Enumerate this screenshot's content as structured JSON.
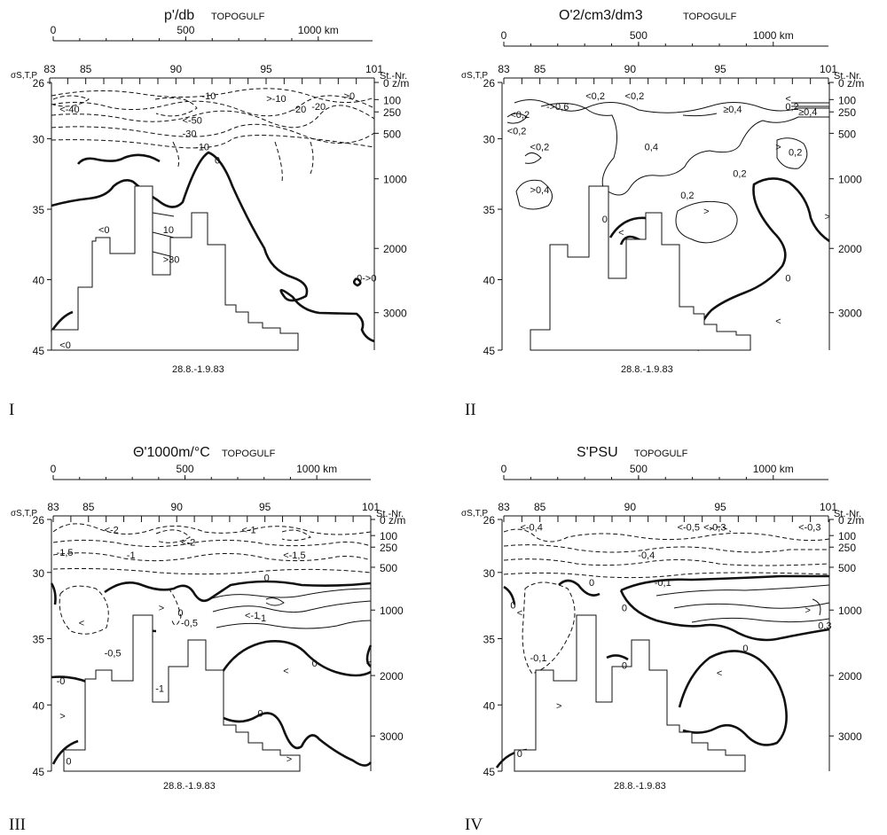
{
  "figure": {
    "panel_numerals": [
      "I",
      "II",
      "III",
      "IV"
    ]
  },
  "chart_data": [
    {
      "type": "contour",
      "title": "p'/db",
      "cruise": "TOPOGULF",
      "date": "28.8.-1.9.83",
      "y_label": "σS,T,P",
      "y_ticks": [
        "26",
        "30",
        "35",
        "40",
        "45"
      ],
      "station_label": "St.-Nr.",
      "station_ticks": [
        "83",
        "85",
        "90",
        "95",
        "101"
      ],
      "distance_ticks": [
        "0",
        "500",
        "1000 km"
      ],
      "depth_ticks": [
        "0 z/m",
        "100",
        "250",
        "500",
        "1000",
        "2000",
        "3000"
      ],
      "contour_labels": [
        "-10",
        "<-40",
        "-20",
        "<-50",
        "-30",
        "-10",
        "0",
        ">-10",
        ">0",
        "-20",
        "10",
        ">30",
        "<0",
        "<0",
        "0->0"
      ]
    },
    {
      "type": "contour",
      "title": "O'2/cm3/dm3",
      "cruise": "TOPOGULF",
      "date": "28.8.-1.9.83",
      "y_label": "σS,T,P",
      "y_ticks": [
        "26",
        "30",
        "35",
        "40",
        "45"
      ],
      "station_label": "St.-Nr.",
      "station_ticks": [
        "83",
        "85",
        "90",
        "95",
        "101"
      ],
      "distance_ticks": [
        "0",
        "500",
        "1000 km"
      ],
      "depth_ticks": [
        "0 z/m",
        "100",
        "250",
        "500",
        "1000",
        "2000",
        "3000"
      ],
      "contour_labels": [
        "<0,2",
        "<0,2",
        "<0,2",
        "->0,6",
        "<",
        "0,2",
        "≥0,4",
        "≥0,4",
        "<0,2",
        "0,4",
        ">",
        "0,2",
        "0,2",
        "<0,2",
        ">0,4",
        "0,2",
        ">",
        "0",
        "<",
        ">",
        "0",
        "<"
      ]
    },
    {
      "type": "contour",
      "title": "Θ'1000m/°C",
      "cruise": "TOPOGULF",
      "date": "28.8.-1.9.83",
      "y_label": "σS,T,P",
      "y_ticks": [
        "26",
        "30",
        "35",
        "40",
        "45"
      ],
      "station_label": "St.-Nr.",
      "station_ticks": [
        "83",
        "85",
        "90",
        "95",
        "101"
      ],
      "distance_ticks": [
        "0",
        "500",
        "1000 km"
      ],
      "depth_ticks": [
        "0 z/m",
        "100",
        "250",
        "500",
        "1000",
        "2000",
        "3000"
      ],
      "contour_labels": [
        "<-2",
        "<-1",
        "-1,5",
        "-1",
        "<-2",
        "<-1,5",
        "0",
        ">",
        "0",
        "-0,5",
        "<",
        "-0,5",
        "-1",
        "<-1",
        "-0",
        "-1",
        "<",
        "0",
        "0",
        ">",
        "0",
        ">",
        "<"
      ]
    },
    {
      "type": "contour",
      "title": "S'PSU",
      "cruise": "TOPOGULF",
      "date": "28.8.-1.9.83",
      "y_label": "σS,T,P",
      "y_ticks": [
        "26",
        "30",
        "35",
        "40",
        "45"
      ],
      "station_label": "St.-Nr.",
      "station_ticks": [
        "83",
        "85",
        "90",
        "95",
        "101"
      ],
      "distance_ticks": [
        "0",
        "500",
        "1000 km"
      ],
      "depth_ticks": [
        "0 z/m",
        "100",
        "250",
        "500",
        "1000",
        "2000",
        "3000"
      ],
      "contour_labels": [
        "<-0,4",
        "<-0,5",
        "<-0,3",
        "<-0,3",
        "-0,4",
        "-0,1",
        "0",
        "0",
        "0",
        "<",
        "-0,1",
        ">",
        "0,3",
        "0",
        "0",
        "<",
        ">",
        "0"
      ]
    }
  ]
}
